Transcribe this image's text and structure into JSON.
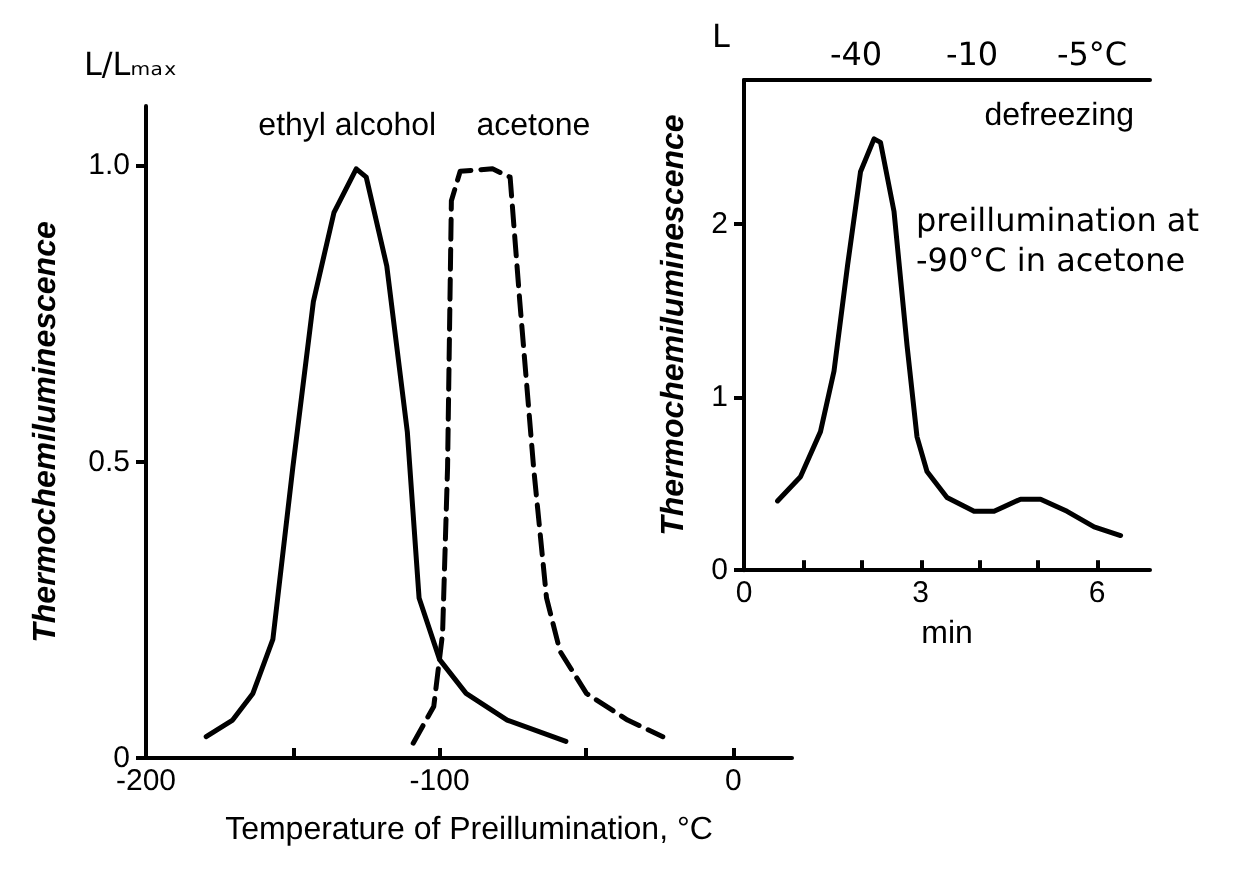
{
  "chart_data": [
    {
      "type": "line",
      "xlabel": "Temperature of Preillumination, °C",
      "ylabel": "Thermochemiluminescence",
      "annotations": [
        "L/Lₘₐₓ"
      ],
      "xlim": [
        -200,
        20
      ],
      "ylim": [
        0,
        1.1
      ],
      "xticks": [
        -200,
        {
          "value": -150,
          "label": null
        },
        -100,
        {
          "value": -50,
          "label": null
        },
        0
      ],
      "yticks": [
        0,
        0.5,
        {
          "value": 1,
          "label": "1.0"
        }
      ],
      "grid": false,
      "legend": false,
      "marker": "none",
      "series": [
        {
          "name": "ethyl alcohol",
          "color": "#000000",
          "line_style": "solid",
          "x": [
            -179.5,
            -170.5,
            -163.6,
            -156.8,
            -150,
            -143,
            -136,
            -128.4,
            -125,
            -118,
            -111,
            -107,
            -100,
            -91,
            -77,
            -57
          ],
          "values": [
            0.036,
            0.064,
            0.109,
            0.2,
            0.49,
            0.77,
            0.92,
            0.994,
            0.98,
            0.83,
            0.55,
            0.27,
            0.166,
            0.109,
            0.064,
            0.028
          ]
        },
        {
          "name": "acetone",
          "color": "#000000",
          "line_style": "dashed",
          "x": [
            -109,
            -102,
            -99,
            -97.3,
            -96,
            -93,
            -82,
            -76,
            -72.7,
            -68,
            -63.6,
            -59,
            -50,
            -36,
            -24
          ],
          "values": [
            0.025,
            0.087,
            0.21,
            0.49,
            0.94,
            0.99,
            0.994,
            0.98,
            0.77,
            0.49,
            0.27,
            0.18,
            0.109,
            0.064,
            0.036
          ]
        }
      ]
    },
    {
      "type": "line",
      "xlabel": "min",
      "ylabel": "Thermochemiluminescence",
      "x2label": "defreezing",
      "annotations": [
        "L",
        "preillumination at\n-90°C in acetone",
        "-40",
        "-10",
        "-5°C"
      ],
      "xlim": [
        0,
        6.9
      ],
      "ylim": [
        0,
        2.83
      ],
      "xticks": [
        0,
        {
          "value": 1,
          "label": null
        },
        {
          "value": 2,
          "label": null
        },
        3,
        {
          "value": 4,
          "label": null
        },
        {
          "value": 5,
          "label": null
        },
        6
      ],
      "yticks": [
        0,
        1,
        2
      ],
      "grid": false,
      "legend": false,
      "marker": "none",
      "series": [
        {
          "color": "#000000",
          "line_style": "solid",
          "x": [
            0.57,
            0.96,
            1.3,
            1.53,
            1.76,
            1.98,
            2.21,
            2.32,
            2.55,
            2.77,
            2.94,
            3.11,
            3.45,
            3.91,
            4.25,
            4.7,
            5.04,
            5.49,
            5.95,
            6.4
          ],
          "values": [
            0.4,
            0.54,
            0.8,
            1.15,
            1.76,
            2.3,
            2.49,
            2.47,
            2.07,
            1.3,
            0.77,
            0.57,
            0.42,
            0.34,
            0.34,
            0.41,
            0.41,
            0.34,
            0.25,
            0.2
          ]
        }
      ]
    }
  ]
}
